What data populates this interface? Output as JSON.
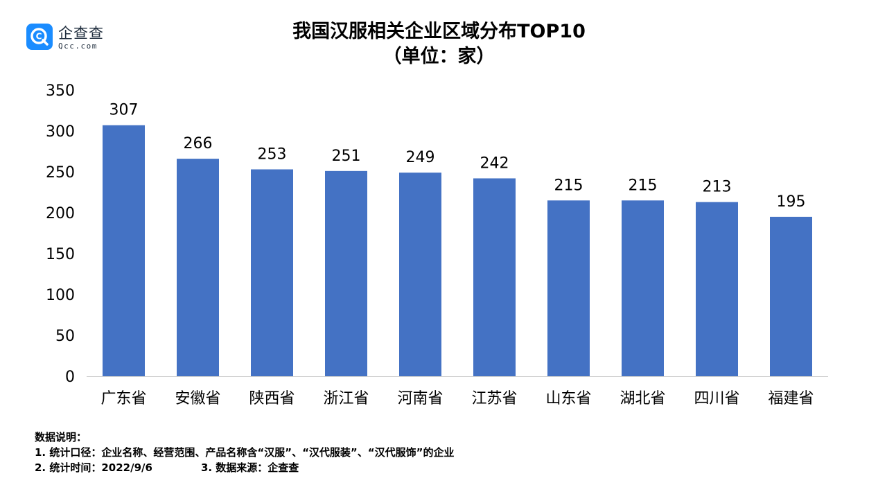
{
  "logo": {
    "name_cn": "企查查",
    "domain": "Qcc.com"
  },
  "chart_data": {
    "type": "bar",
    "title": "我国汉服相关企业区域分布TOP10",
    "subtitle": "（单位：家）",
    "categories": [
      "广东省",
      "安徽省",
      "陕西省",
      "浙江省",
      "河南省",
      "江苏省",
      "山东省",
      "湖北省",
      "四川省",
      "福建省"
    ],
    "values": [
      307,
      266,
      253,
      251,
      249,
      242,
      215,
      215,
      213,
      195
    ],
    "data_labels": [
      "307",
      "266",
      "253",
      "251",
      "249",
      "242",
      "215",
      "215",
      "213",
      "195"
    ],
    "ylim": [
      0,
      350
    ],
    "yticks": [
      "0",
      "50",
      "100",
      "150",
      "200",
      "250",
      "300",
      "350"
    ],
    "xlabel": "",
    "ylabel": "",
    "grid": false,
    "bar_color": "#4472c4"
  },
  "notes": {
    "heading": "数据说明：",
    "line1": "1. 统计口径：企业名称、经营范围、产品名称含“汉服”、“汉代服装”、“汉代服饰”的企业",
    "line2a": "2. 统计时间：2022/9/6",
    "line2b": "3. 数据来源：企查查"
  }
}
